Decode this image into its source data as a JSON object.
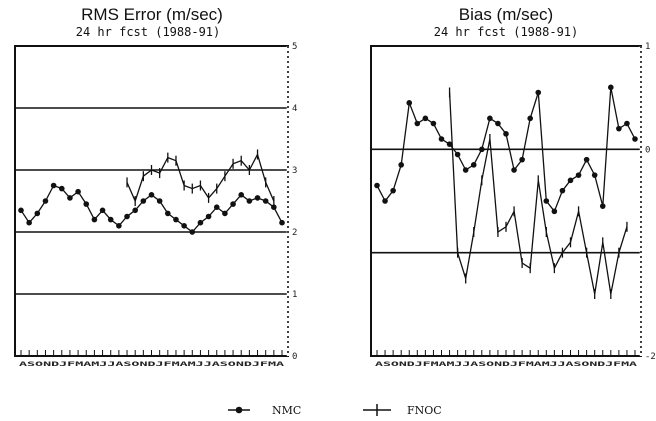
{
  "chart_data": [
    {
      "type": "line",
      "title": "RMS Error (m/sec)",
      "subtitle": "24 hr fcst (1988-91)",
      "ylim": [
        0,
        5
      ],
      "y_ticks": [
        "0",
        "1",
        "2",
        "3",
        "4",
        "5"
      ],
      "month_axis": "ASONDJFMAMJJASONDJFMAMJJASONDJFMA",
      "x_start_month": 0,
      "x_months": 33,
      "series": [
        {
          "name": "NMC",
          "marker": "dot",
          "x": [
            0,
            1,
            2,
            3,
            4,
            5,
            6,
            7,
            8,
            9,
            10,
            11,
            12,
            13,
            14,
            15,
            16,
            17,
            18,
            19,
            20,
            21,
            22,
            23,
            24,
            25,
            26,
            27,
            28,
            29,
            30,
            31,
            32
          ],
          "values": [
            2.35,
            2.15,
            2.3,
            2.5,
            2.75,
            2.7,
            2.55,
            2.65,
            2.45,
            2.2,
            2.35,
            2.2,
            2.1,
            2.25,
            2.35,
            2.5,
            2.6,
            2.5,
            2.3,
            2.2,
            2.1,
            2.0,
            2.15,
            2.25,
            2.4,
            2.3,
            2.45,
            2.6,
            2.5,
            2.55,
            2.5,
            2.4,
            2.15
          ]
        },
        {
          "name": "FNOC",
          "marker": "plus",
          "x": [
            13,
            14,
            15,
            16,
            17,
            18,
            19,
            20,
            21,
            22,
            23,
            24,
            25,
            26,
            27,
            28,
            29,
            30,
            31
          ],
          "values": [
            2.8,
            2.5,
            2.9,
            3.0,
            2.95,
            3.2,
            3.15,
            2.75,
            2.7,
            2.75,
            2.55,
            2.7,
            2.9,
            3.1,
            3.15,
            3.0,
            3.25,
            2.8,
            2.5
          ]
        }
      ]
    },
    {
      "type": "line",
      "title": "Bias (m/sec)",
      "subtitle": "24 hr fcst (1988-91)",
      "ylim": [
        -2,
        1
      ],
      "y_ticks": [
        "1",
        "0",
        "-2"
      ],
      "month_axis": "ASONDJFMAMJJASONDJFMAMJJASONDJFMA",
      "x_start_month": 0,
      "x_months": 33,
      "series": [
        {
          "name": "NMC",
          "marker": "dot",
          "x": [
            0,
            1,
            2,
            3,
            4,
            5,
            6,
            7,
            8,
            9,
            10,
            11,
            12,
            13,
            14,
            15,
            16,
            17,
            18,
            19,
            20,
            21,
            22,
            23,
            24,
            25,
            26,
            27,
            28,
            29,
            30,
            31,
            32
          ],
          "values": [
            -0.35,
            -0.5,
            -0.4,
            -0.15,
            0.45,
            0.25,
            0.3,
            0.25,
            0.1,
            0.05,
            -0.05,
            -0.2,
            -0.15,
            0.0,
            0.3,
            0.25,
            0.15,
            -0.2,
            -0.1,
            0.3,
            0.55,
            -0.5,
            -0.6,
            -0.4,
            -0.3,
            -0.25,
            -0.1,
            -0.25,
            -0.55,
            0.6,
            0.2,
            0.25,
            0.1
          ]
        },
        {
          "name": "FNOC",
          "marker": "plus",
          "x": [
            9,
            10,
            11,
            12,
            13,
            14,
            15,
            16,
            17,
            18,
            19,
            20,
            21,
            22,
            23,
            24,
            25,
            26,
            27,
            28,
            29,
            30,
            31
          ],
          "values": [
            0.55,
            -1.0,
            -1.25,
            -0.8,
            -0.3,
            0.1,
            -0.8,
            -0.75,
            -0.6,
            -1.1,
            -1.15,
            -0.3,
            -0.8,
            -1.15,
            -1.0,
            -0.9,
            -0.6,
            -1.0,
            -1.4,
            -0.9,
            -1.4,
            -1.0,
            -0.75
          ]
        }
      ]
    }
  ],
  "legend": {
    "items": [
      {
        "name": "NMC",
        "marker": "dot"
      },
      {
        "name": "FNOC",
        "marker": "plus"
      }
    ],
    "placement": "bottom-center"
  },
  "colors": {
    "ink": "#111111",
    "paper": "#ffffff"
  }
}
